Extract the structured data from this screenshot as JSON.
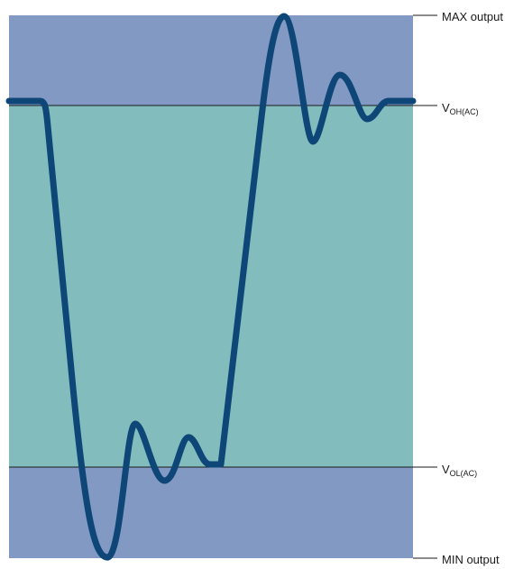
{
  "diagram": {
    "colors": {
      "outer_band": "#8299c4",
      "valid_band": "#82bcbd",
      "waveform": "#0d4677",
      "line": "#1a1a1a"
    },
    "labels": {
      "max_output": "MAX output",
      "voh": {
        "main": "V",
        "sub": "OH(AC)"
      },
      "vol": {
        "main": "V",
        "sub": "OL(AC)"
      },
      "min_output": "MIN output"
    }
  }
}
